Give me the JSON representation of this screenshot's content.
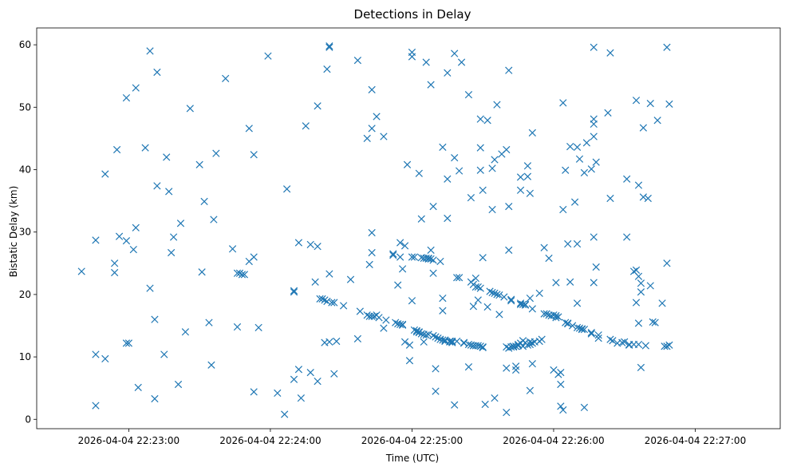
{
  "chart_data": {
    "type": "scatter",
    "title": "Detections in Delay",
    "xlabel": "Time (UTC)",
    "ylabel": "Bistatic Delay (km)",
    "marker": "x",
    "color": "#1f77b4",
    "x_unit": "seconds after 2026-04-04 22:22:00",
    "xlim": [
      21,
      336
    ],
    "ylim": [
      -1.5,
      62.7
    ],
    "x_ticks": [
      {
        "value": 60,
        "label": "2026-04-04 22:23:00"
      },
      {
        "value": 120,
        "label": "2026-04-04 22:24:00"
      },
      {
        "value": 180,
        "label": "2026-04-04 22:25:00"
      },
      {
        "value": 240,
        "label": "2026-04-04 22:26:00"
      },
      {
        "value": 300,
        "label": "2026-04-04 22:27:00"
      }
    ],
    "y_ticks": [
      {
        "value": 0,
        "label": "0"
      },
      {
        "value": 10,
        "label": "10"
      },
      {
        "value": 20,
        "label": "20"
      },
      {
        "value": 30,
        "label": "30"
      },
      {
        "value": 40,
        "label": "40"
      },
      {
        "value": 50,
        "label": "50"
      },
      {
        "value": 60,
        "label": "60"
      }
    ],
    "points": [
      [
        40,
        23.7
      ],
      [
        46,
        28.7
      ],
      [
        46,
        10.4
      ],
      [
        46,
        2.2
      ],
      [
        50,
        39.3
      ],
      [
        50,
        9.7
      ],
      [
        54,
        25
      ],
      [
        54,
        23.5
      ],
      [
        55,
        43.2
      ],
      [
        56,
        29.3
      ],
      [
        59,
        51.5
      ],
      [
        59,
        12.2
      ],
      [
        60,
        12.2
      ],
      [
        59,
        28.6
      ],
      [
        62,
        27.2
      ],
      [
        63,
        53.1
      ],
      [
        63,
        30.7
      ],
      [
        64,
        5.1
      ],
      [
        67,
        43.5
      ],
      [
        69,
        59
      ],
      [
        69,
        21
      ],
      [
        71,
        16
      ],
      [
        71,
        3.3
      ],
      [
        72,
        55.6
      ],
      [
        72,
        37.4
      ],
      [
        75,
        10.4
      ],
      [
        76,
        42
      ],
      [
        77,
        36.5
      ],
      [
        78,
        26.7
      ],
      [
        79,
        29.2
      ],
      [
        81,
        5.6
      ],
      [
        82,
        31.4
      ],
      [
        84,
        14
      ],
      [
        86,
        49.8
      ],
      [
        90,
        40.8
      ],
      [
        91,
        23.6
      ],
      [
        92,
        34.9
      ],
      [
        94,
        15.5
      ],
      [
        95,
        8.7
      ],
      [
        96,
        32
      ],
      [
        97,
        42.6
      ],
      [
        101,
        54.6
      ],
      [
        104,
        27.3
      ],
      [
        106,
        14.8
      ],
      [
        106,
        23.4
      ],
      [
        107,
        23.4
      ],
      [
        108,
        23.2
      ],
      [
        109,
        23.2
      ],
      [
        111,
        46.6
      ],
      [
        111,
        25.3
      ],
      [
        113,
        42.4
      ],
      [
        113,
        26
      ],
      [
        113,
        4.4
      ],
      [
        115,
        14.7
      ],
      [
        119,
        58.2
      ],
      [
        123,
        4.2
      ],
      [
        126,
        0.8
      ],
      [
        127,
        36.9
      ],
      [
        130,
        20.6
      ],
      [
        130,
        20.4
      ],
      [
        130,
        6.4
      ],
      [
        132,
        28.3
      ],
      [
        132,
        8
      ],
      [
        133,
        3.4
      ],
      [
        135,
        47
      ],
      [
        137,
        28
      ],
      [
        137,
        7.5
      ],
      [
        139,
        22
      ],
      [
        140,
        6.1
      ],
      [
        140,
        27.7
      ],
      [
        140,
        50.2
      ],
      [
        141,
        19.3
      ],
      [
        142,
        19.3
      ],
      [
        143,
        19.1
      ],
      [
        143,
        12.3
      ],
      [
        144,
        56.1
      ],
      [
        144,
        18.9
      ],
      [
        145,
        59.6
      ],
      [
        145,
        59.8
      ],
      [
        145,
        23.3
      ],
      [
        145,
        12.4
      ],
      [
        146,
        18.7
      ],
      [
        147,
        18.7
      ],
      [
        147,
        7.3
      ],
      [
        148,
        12.5
      ],
      [
        151,
        18.2
      ],
      [
        154,
        22.4
      ],
      [
        157,
        57.5
      ],
      [
        157,
        12.9
      ],
      [
        158,
        17.3
      ],
      [
        161,
        45
      ],
      [
        161,
        16.7
      ],
      [
        162,
        24.8
      ],
      [
        162,
        16.5
      ],
      [
        163,
        52.8
      ],
      [
        163,
        46.6
      ],
      [
        163,
        29.9
      ],
      [
        163,
        26.7
      ],
      [
        163,
        16.5
      ],
      [
        164,
        16.5
      ],
      [
        165,
        48.5
      ],
      [
        165,
        16.7
      ],
      [
        166,
        16.3
      ],
      [
        168,
        45.3
      ],
      [
        168,
        14.6
      ],
      [
        169,
        15.9
      ],
      [
        172,
        26.5
      ],
      [
        172,
        26.3
      ],
      [
        173,
        15.5
      ],
      [
        174,
        21.5
      ],
      [
        174,
        15.3
      ],
      [
        175,
        28.3
      ],
      [
        175,
        26
      ],
      [
        175,
        15.2
      ],
      [
        176,
        15.2
      ],
      [
        176,
        15.1
      ],
      [
        176,
        24.1
      ],
      [
        177,
        27.8
      ],
      [
        177,
        12.4
      ],
      [
        178,
        40.8
      ],
      [
        179,
        11.9
      ],
      [
        179,
        9.4
      ],
      [
        180,
        26
      ],
      [
        180,
        58.8
      ],
      [
        180,
        58.1
      ],
      [
        180,
        19
      ],
      [
        181,
        14.3
      ],
      [
        181,
        26
      ],
      [
        182,
        14.2
      ],
      [
        182,
        14
      ],
      [
        183,
        39.4
      ],
      [
        183,
        14
      ],
      [
        183,
        13.9
      ],
      [
        184,
        32.1
      ],
      [
        184,
        25.9
      ],
      [
        184,
        13.7
      ],
      [
        185,
        25.8
      ],
      [
        185,
        13.6
      ],
      [
        185,
        12.4
      ],
      [
        186,
        57.2
      ],
      [
        186,
        25.8
      ],
      [
        186,
        13.5
      ],
      [
        187,
        13.6
      ],
      [
        187,
        25.7
      ],
      [
        187,
        25.8
      ],
      [
        188,
        53.6
      ],
      [
        188,
        25.7
      ],
      [
        188,
        27.1
      ],
      [
        189,
        23.4
      ],
      [
        189,
        34.1
      ],
      [
        189,
        13.4
      ],
      [
        189,
        25.5
      ],
      [
        190,
        13.2
      ],
      [
        190,
        4.5
      ],
      [
        190,
        8.1
      ],
      [
        191,
        13
      ],
      [
        192,
        25.3
      ],
      [
        192,
        12.8
      ],
      [
        193,
        12.7
      ],
      [
        193,
        43.6
      ],
      [
        193,
        19.4
      ],
      [
        193,
        17.4
      ],
      [
        194,
        12.7
      ],
      [
        194,
        12.5
      ],
      [
        195,
        38.5
      ],
      [
        195,
        32.2
      ],
      [
        195,
        55.5
      ],
      [
        196,
        12.5
      ],
      [
        196,
        12.4
      ],
      [
        197,
        12.4
      ],
      [
        197,
        12.3
      ],
      [
        197,
        12.5
      ],
      [
        198,
        58.6
      ],
      [
        198,
        41.9
      ],
      [
        198,
        2.3
      ],
      [
        199,
        22.7
      ],
      [
        199,
        12.5
      ],
      [
        200,
        39.8
      ],
      [
        200,
        22.7
      ],
      [
        201,
        57.2
      ],
      [
        202,
        12.2
      ],
      [
        202,
        12.3
      ],
      [
        204,
        52
      ],
      [
        204,
        12
      ],
      [
        204,
        8.4
      ],
      [
        205,
        35.5
      ],
      [
        205,
        11.9
      ],
      [
        205,
        22
      ],
      [
        206,
        18.1
      ],
      [
        206,
        21.6
      ],
      [
        206,
        11.8
      ],
      [
        207,
        11.8
      ],
      [
        207,
        21.2
      ],
      [
        207,
        22.6
      ],
      [
        208,
        21.2
      ],
      [
        208,
        11.8
      ],
      [
        208,
        19.1
      ],
      [
        209,
        48.1
      ],
      [
        209,
        43.5
      ],
      [
        209,
        39.9
      ],
      [
        209,
        11.7
      ],
      [
        209,
        21
      ],
      [
        210,
        36.7
      ],
      [
        210,
        25.9
      ],
      [
        210,
        11.6
      ],
      [
        210,
        11.5
      ],
      [
        211,
        2.4
      ],
      [
        212,
        47.9
      ],
      [
        212,
        18
      ],
      [
        213,
        20.5
      ],
      [
        214,
        33.6
      ],
      [
        214,
        40.2
      ],
      [
        214,
        20.3
      ],
      [
        215,
        41.6
      ],
      [
        215,
        20.2
      ],
      [
        215,
        3.4
      ],
      [
        216,
        50.4
      ],
      [
        216,
        20
      ],
      [
        217,
        19.9
      ],
      [
        217,
        16.8
      ],
      [
        218,
        42.5
      ],
      [
        219,
        19.6
      ],
      [
        220,
        43.2
      ],
      [
        220,
        11.6
      ],
      [
        220,
        8.2
      ],
      [
        220,
        1.1
      ],
      [
        221,
        27.1
      ],
      [
        221,
        55.9
      ],
      [
        221,
        34.1
      ],
      [
        221,
        11.4
      ],
      [
        222,
        19
      ],
      [
        222,
        11.6
      ],
      [
        222,
        19.2
      ],
      [
        223,
        11.7
      ],
      [
        223,
        11.6
      ],
      [
        224,
        8.5
      ],
      [
        224,
        7.9
      ],
      [
        224,
        11.7
      ],
      [
        225,
        11.8
      ],
      [
        225,
        12
      ],
      [
        226,
        12.2
      ],
      [
        226,
        38.8
      ],
      [
        226,
        36.7
      ],
      [
        226,
        18.4
      ],
      [
        226,
        18.6
      ],
      [
        227,
        11.7
      ],
      [
        227,
        18.4
      ],
      [
        227,
        12.6
      ],
      [
        228,
        18.3
      ],
      [
        228,
        18.4
      ],
      [
        228,
        12.3
      ],
      [
        229,
        40.6
      ],
      [
        229,
        38.9
      ],
      [
        229,
        11.9
      ],
      [
        230,
        36.2
      ],
      [
        230,
        12
      ],
      [
        230,
        12.4
      ],
      [
        230,
        4.6
      ],
      [
        230,
        19.4
      ],
      [
        231,
        45.9
      ],
      [
        231,
        8.9
      ],
      [
        231,
        12.2
      ],
      [
        231,
        17.7
      ],
      [
        232,
        12.4
      ],
      [
        234,
        12.5
      ],
      [
        234,
        20.2
      ],
      [
        235,
        12.8
      ],
      [
        236,
        16.9
      ],
      [
        236,
        27.5
      ],
      [
        237,
        16.9
      ],
      [
        238,
        16.7
      ],
      [
        238,
        25.8
      ],
      [
        239,
        16.6
      ],
      [
        240,
        16.7
      ],
      [
        240,
        7.9
      ],
      [
        241,
        16.3
      ],
      [
        241,
        16.6
      ],
      [
        241,
        21.9
      ],
      [
        242,
        16.4
      ],
      [
        242,
        7.2
      ],
      [
        243,
        5.6
      ],
      [
        243,
        7.5
      ],
      [
        243,
        2.1
      ],
      [
        244,
        1.5
      ],
      [
        244,
        50.7
      ],
      [
        244,
        33.6
      ],
      [
        245,
        39.9
      ],
      [
        245,
        15.5
      ],
      [
        246,
        15.4
      ],
      [
        246,
        15.3
      ],
      [
        246,
        28.1
      ],
      [
        247,
        43.7
      ],
      [
        247,
        22
      ],
      [
        248,
        15
      ],
      [
        249,
        34.8
      ],
      [
        250,
        43.6
      ],
      [
        250,
        28.1
      ],
      [
        250,
        18.6
      ],
      [
        250,
        14.7
      ],
      [
        251,
        41.7
      ],
      [
        251,
        14.6
      ],
      [
        252,
        14.5
      ],
      [
        252,
        14.4
      ],
      [
        253,
        14.4
      ],
      [
        253,
        1.9
      ],
      [
        253,
        39.5
      ],
      [
        254,
        44.3
      ],
      [
        256,
        13.9
      ],
      [
        256,
        13.7
      ],
      [
        256,
        40.1
      ],
      [
        257,
        59.6
      ],
      [
        257,
        48.1
      ],
      [
        257,
        47.3
      ],
      [
        257,
        45.3
      ],
      [
        257,
        29.2
      ],
      [
        257,
        21.9
      ],
      [
        258,
        41.2
      ],
      [
        258,
        24.4
      ],
      [
        259,
        13
      ],
      [
        259,
        13.5
      ],
      [
        263,
        49.1
      ],
      [
        264,
        58.7
      ],
      [
        264,
        35.4
      ],
      [
        264,
        12.8
      ],
      [
        265,
        12.6
      ],
      [
        267,
        12.2
      ],
      [
        269,
        12.3
      ],
      [
        270,
        12.4
      ],
      [
        271,
        29.2
      ],
      [
        271,
        38.5
      ],
      [
        272,
        12
      ],
      [
        272,
        11.9
      ],
      [
        274,
        12
      ],
      [
        274,
        23.7
      ],
      [
        275,
        23.9
      ],
      [
        275,
        18.7
      ],
      [
        275,
        51.1
      ],
      [
        276,
        37.5
      ],
      [
        276,
        22.9
      ],
      [
        276,
        15.4
      ],
      [
        276,
        12
      ],
      [
        277,
        21.8
      ],
      [
        277,
        20.4
      ],
      [
        277,
        8.3
      ],
      [
        278,
        46.7
      ],
      [
        278,
        35.6
      ],
      [
        279,
        11.8
      ],
      [
        280,
        35.4
      ],
      [
        281,
        50.6
      ],
      [
        281,
        21.4
      ],
      [
        282,
        15.6
      ],
      [
        283,
        15.5
      ],
      [
        284,
        47.9
      ],
      [
        286,
        18.6
      ],
      [
        287,
        11.7
      ],
      [
        288,
        59.6
      ],
      [
        288,
        25
      ],
      [
        288,
        11.7
      ],
      [
        289,
        50.5
      ],
      [
        289,
        11.9
      ]
    ]
  }
}
